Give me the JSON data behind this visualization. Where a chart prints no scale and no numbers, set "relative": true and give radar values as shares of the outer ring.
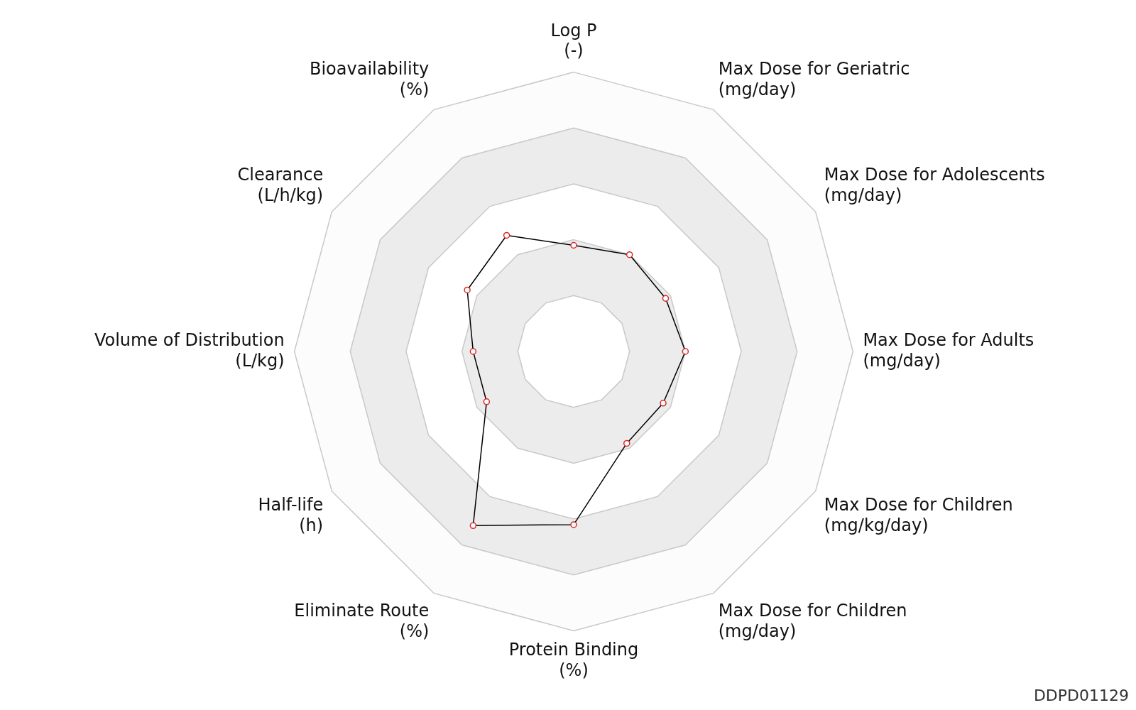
{
  "chart_data": {
    "type": "radar",
    "relative": true,
    "categories": [
      "Log P\n(-)",
      "Max Dose for Geriatric\n(mg/day)",
      "Max Dose for Adolescents\n(mg/day)",
      "Max Dose for Adults\n(mg/day)",
      "Max Dose for Children\n(mg/kg/day)",
      "Max Dose for Children\n(mg/day)",
      "Protein Binding\n(%)",
      "Eliminate Route\n(%)",
      "Half-life\n(h)",
      "Volume of Distribution\n(L/kg)",
      "Clearance\n(L/h/kg)",
      "Bioavailability\n(%)"
    ],
    "series": [
      {
        "color": "#000000",
        "values": [
          0.38,
          0.4,
          0.38,
          0.4,
          0.37,
          0.38,
          0.62,
          0.72,
          0.36,
          0.36,
          0.44,
          0.48
        ]
      }
    ],
    "marker": "circle",
    "legend": false,
    "annotations": [
      "DDPD01129"
    ]
  }
}
